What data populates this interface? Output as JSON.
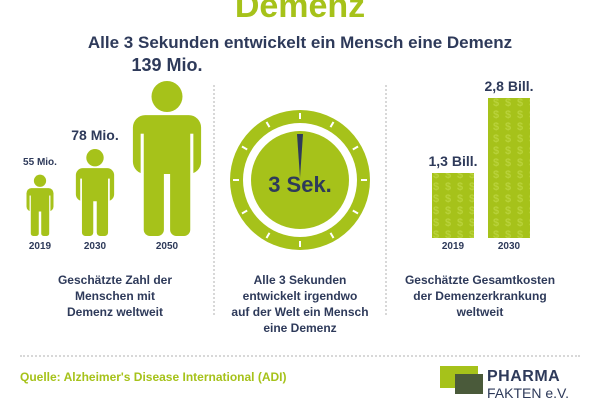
{
  "title": "Demenz",
  "subtitle": "Alle 3 Sekunden entwickelt ein Mensch eine Demenz",
  "people": {
    "chart_data": {
      "type": "bar",
      "categories": [
        "2019",
        "2030",
        "2050"
      ],
      "values": [
        55,
        78,
        139
      ],
      "value_labels": [
        "55 Mio.",
        "78 Mio.",
        "139 Mio."
      ],
      "ylim": [
        0,
        139
      ]
    },
    "caption_lines": [
      "Geschätzte Zahl der",
      "Menschen mit",
      "Demenz weltweit"
    ]
  },
  "clock": {
    "label": "3 Sek.",
    "caption_lines": [
      "Alle 3 Sekunden",
      "entwickelt irgendwo",
      "auf der Welt ein Mensch",
      "eine Demenz"
    ]
  },
  "costs": {
    "chart_data": {
      "type": "bar",
      "categories": [
        "2019",
        "2030"
      ],
      "values": [
        1.3,
        2.8
      ],
      "value_labels": [
        "1,3 Bill.",
        "2,8 Bill."
      ],
      "ylim": [
        0,
        2.8
      ]
    },
    "caption_lines": [
      "Geschätzte Gesamtkosten",
      "der Demenzerkrankung",
      "weltweit"
    ]
  },
  "source": "Quelle: Alzheimer's Disease International (ADI)",
  "logo": {
    "line1": "PHARMA",
    "line2": "FAKTEN e.V."
  },
  "colors": {
    "accent": "#a6c21a",
    "text": "#2e3a5a",
    "logo_dark": "#4a5a3a"
  }
}
